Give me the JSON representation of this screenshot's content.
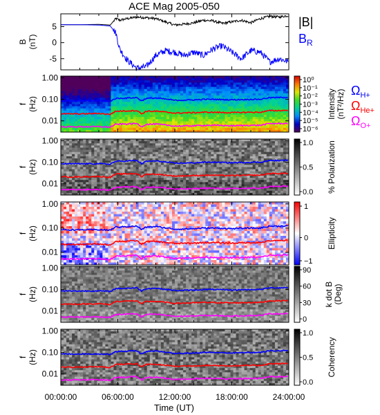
{
  "title": "ACE Mag 2005-050",
  "xaxis": {
    "label": "Time (UT)",
    "range": [
      0,
      24
    ],
    "tick_labels": [
      "00:00:00",
      "06:00:00",
      "12:00:00",
      "18:00:00",
      "24:00:00"
    ]
  },
  "colors": {
    "B": "#000000",
    "BR": "#0000ff",
    "H": "#0000ff",
    "He": "#ff0000",
    "O": "#ff00ff"
  },
  "chart_data": [
    {
      "type": "line",
      "panel": "field",
      "ylabel": "B\n(nT)",
      "ylim": [
        -8.5,
        9
      ],
      "yticks": [
        5,
        0,
        -5
      ],
      "x": [
        0,
        2,
        4,
        5.2,
        5.8,
        6.2,
        7,
        8,
        9,
        10,
        11,
        12,
        13,
        14,
        15,
        16,
        17,
        18,
        19,
        20,
        21,
        22,
        23,
        24
      ],
      "series": [
        {
          "name": "|B|",
          "color": "#000000",
          "values": [
            5.6,
            5.6,
            5.7,
            5.5,
            7.5,
            7.0,
            7.5,
            8.0,
            7.8,
            7.5,
            6.5,
            5.5,
            5.8,
            6.2,
            7.0,
            6.8,
            6.0,
            6.5,
            7.0,
            6.2,
            7.5,
            8.2,
            8.0,
            8.5
          ]
        },
        {
          "name": "B_R",
          "color": "#0000ff",
          "values": [
            5.6,
            5.6,
            5.5,
            5.2,
            3.0,
            -2.0,
            -5.5,
            -8.0,
            -7.5,
            -4.0,
            -2.5,
            -3.0,
            -4.0,
            -3.0,
            -4.0,
            -2.0,
            -1.0,
            -3.0,
            -5.0,
            -2.5,
            -3.0,
            -6.0,
            -5.0,
            -6.0
          ]
        }
      ],
      "legend": [
        "|B|",
        "B",
        "R"
      ]
    },
    {
      "type": "heatmap",
      "panel": "intensity",
      "ylabel": "f\n(Hz)",
      "yticks": [
        "1.00",
        "0.10",
        "0.01"
      ],
      "ylog": true,
      "ylim": [
        0.003,
        1.2
      ],
      "colorbar": {
        "label": "Intensity\n(nT²/Hz)",
        "tick_labels": [
          "10⁰",
          "10⁻¹",
          "10⁻²",
          "10⁻³",
          "10⁻⁴",
          "10⁻⁵",
          "10⁻⁶"
        ],
        "cmap": "rainbow"
      },
      "legend": [
        {
          "symbol": "Ω",
          "sub": "H+",
          "color": "#0000ff"
        },
        {
          "symbol": "Ω",
          "sub": "He+",
          "color": "#ff0000"
        },
        {
          "symbol": "Ω",
          "sub": "O+",
          "color": "#ff00ff"
        }
      ]
    },
    {
      "type": "heatmap",
      "panel": "polarization",
      "ylabel": "f\n(Hz)",
      "yticks": [
        "1.00",
        "0.10",
        "0.01"
      ],
      "ylog": true,
      "colorbar": {
        "label": "% Polarization",
        "tick_labels": [
          "1.0",
          "0.5",
          "0.0"
        ],
        "cmap": "gray"
      }
    },
    {
      "type": "heatmap",
      "panel": "ellipticity",
      "ylabel": "f\n(Hz)",
      "yticks": [
        "1.00",
        "0.10",
        "0.01"
      ],
      "ylog": true,
      "colorbar": {
        "label": "Ellipticity",
        "tick_labels": [
          "1",
          "0",
          "−1"
        ],
        "cmap": "bwr"
      }
    },
    {
      "type": "heatmap",
      "panel": "kdotb",
      "ylabel": "f\n(Hz)",
      "yticks": [
        "1.00",
        "0.10",
        "0.01"
      ],
      "ylog": true,
      "colorbar": {
        "label": "k dot B\n(Deg)",
        "tick_labels": [
          "90",
          "60",
          "30",
          "0"
        ],
        "cmap": "gray"
      }
    },
    {
      "type": "heatmap",
      "panel": "coherency",
      "ylabel": "f\n(Hz)",
      "yticks": [
        "1.00",
        "0.10",
        "0.01"
      ],
      "ylog": true,
      "colorbar": {
        "label": "Coherency",
        "tick_labels": [
          "1.0",
          "0.5",
          "0.0"
        ],
        "cmap": "gray"
      }
    }
  ],
  "gyrofrequency_curves": {
    "x": [
      0,
      2,
      4,
      5.2,
      5.8,
      7,
      8,
      8.5,
      9,
      10,
      12,
      14,
      15,
      16,
      18,
      20,
      21,
      22,
      23,
      24
    ],
    "H+": [
      0.085,
      0.085,
      0.086,
      0.082,
      0.11,
      0.115,
      0.12,
      0.085,
      0.11,
      0.115,
      0.09,
      0.094,
      0.1,
      0.1,
      0.095,
      0.1,
      0.1,
      0.12,
      0.12,
      0.125
    ],
    "He+": [
      0.021,
      0.021,
      0.022,
      0.02,
      0.028,
      0.029,
      0.03,
      0.021,
      0.028,
      0.028,
      0.023,
      0.024,
      0.025,
      0.025,
      0.024,
      0.025,
      0.025,
      0.03,
      0.03,
      0.031
    ],
    "O+": [
      0.0053,
      0.0053,
      0.0054,
      0.0051,
      0.0069,
      0.0072,
      0.0075,
      0.0053,
      0.0069,
      0.0071,
      0.0057,
      0.0059,
      0.0062,
      0.0062,
      0.0059,
      0.0062,
      0.0062,
      0.0075,
      0.0075,
      0.0078
    ]
  }
}
